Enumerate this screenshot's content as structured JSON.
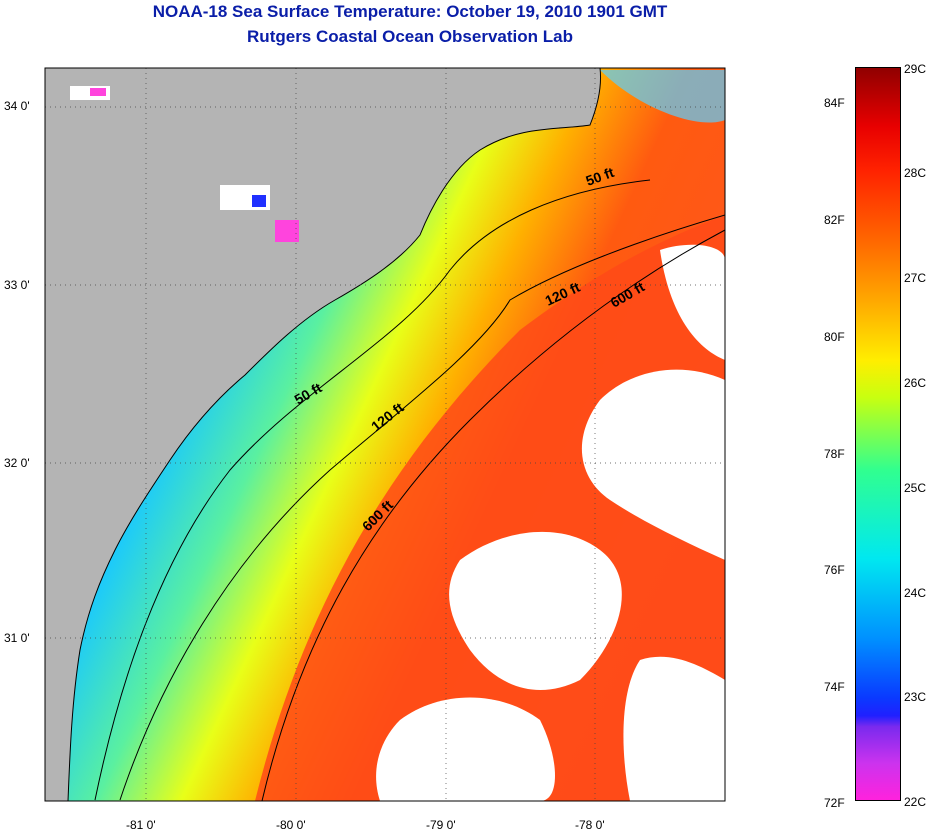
{
  "header": {
    "title": "NOAA-18 Sea Surface Temperature:  October 19, 2010 1901 GMT",
    "subtitle": "Rutgers Coastal Ocean Observation Lab"
  },
  "map": {
    "lat_labels": [
      "34 0'",
      "33 0'",
      "32 0'",
      "31 0'"
    ],
    "lon_labels": [
      "-81 0'",
      "-80 0'",
      "-79 0'",
      "-78 0'"
    ],
    "contours": [
      {
        "label": "50 ft",
        "depth": 50
      },
      {
        "label": "50 ft",
        "depth": 50
      },
      {
        "label": "120 ft",
        "depth": 120
      },
      {
        "label": "120 ft",
        "depth": 120
      },
      {
        "label": "600 ft",
        "depth": 600
      },
      {
        "label": "600 ft",
        "depth": 600
      }
    ],
    "colors": {
      "land": "#b4b4b4",
      "cloud": "#ffffff",
      "coast": "#000000"
    }
  },
  "colorbar": {
    "f_labels": [
      "84F",
      "82F",
      "80F",
      "78F",
      "76F",
      "74F",
      "72F"
    ],
    "c_labels": [
      "29C",
      "28C",
      "27C",
      "26C",
      "25C",
      "24C",
      "23C",
      "22C"
    ]
  }
}
